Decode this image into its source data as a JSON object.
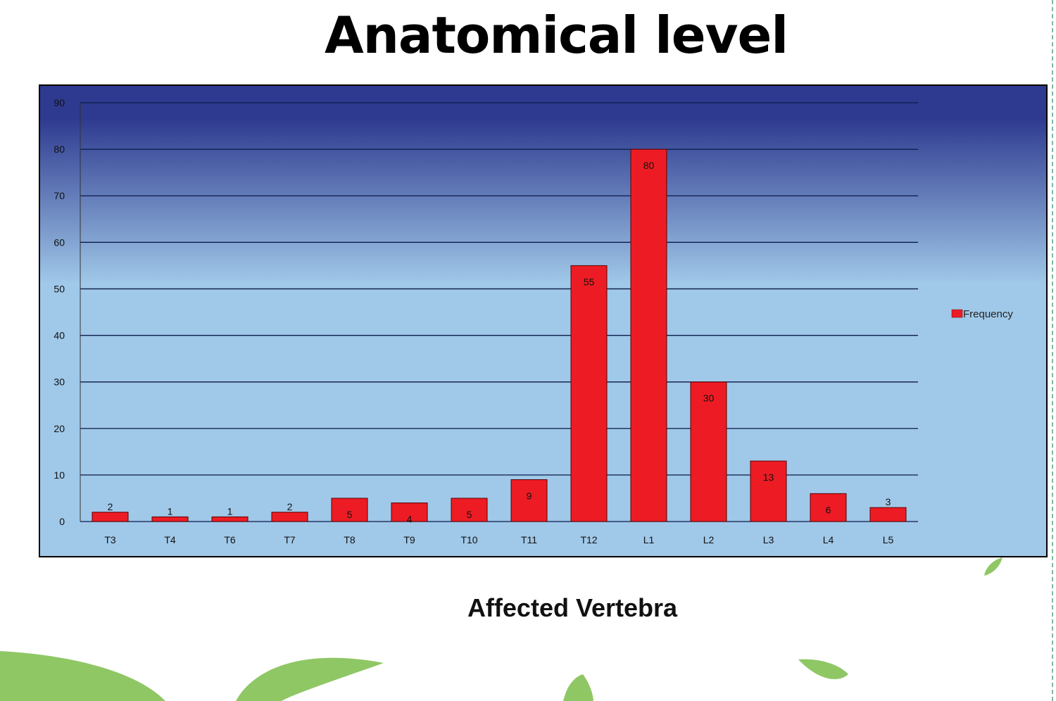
{
  "colors": {
    "bar": "#ed1c24",
    "plot_top": "#2e3a8f",
    "plot_bottom": "#a0c8e8",
    "gridline": "#0b1a4a",
    "leaf": "#8fc765"
  },
  "chart_data": {
    "type": "bar",
    "title": "Anatomical level",
    "xlabel": "Affected Vertebra",
    "ylabel": "",
    "categories": [
      "T3",
      "T4",
      "T6",
      "T7",
      "T8",
      "T9",
      "T10",
      "T11",
      "T12",
      "L1",
      "L2",
      "L3",
      "L4",
      "L5"
    ],
    "series": [
      {
        "name": "Frequency",
        "values": [
          2,
          1,
          1,
          2,
          5,
          4,
          5,
          9,
          55,
          80,
          30,
          13,
          6,
          3
        ]
      }
    ],
    "data_labels": [
      "2",
      "1",
      "1",
      "2",
      "5",
      "4",
      "5",
      "9",
      "55",
      "80",
      "30",
      "13",
      "6",
      "3"
    ],
    "ylim": [
      0,
      90
    ],
    "yticks": [
      0,
      10,
      20,
      30,
      40,
      50,
      60,
      70,
      80,
      90
    ],
    "grid": true,
    "legend": "right"
  }
}
